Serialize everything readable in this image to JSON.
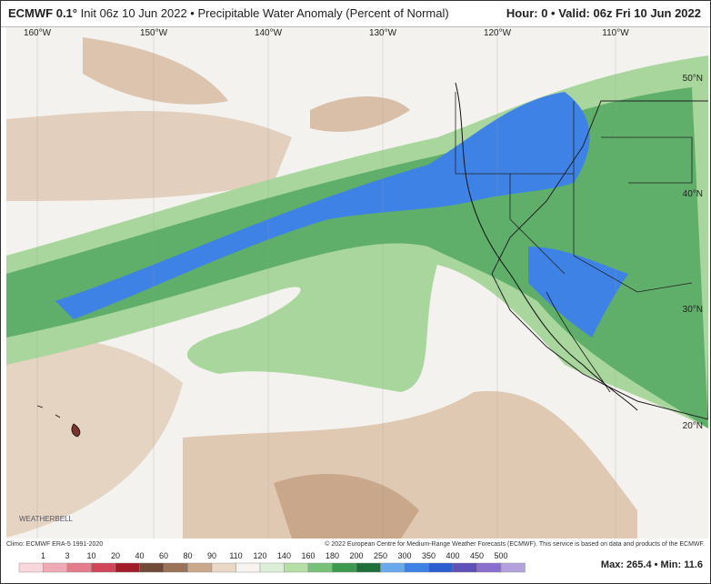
{
  "header": {
    "model": "ECMWF 0.1°",
    "title": "Init 06z 10 Jun 2022 • Precipitable Water Anomaly (Percent of Normal)",
    "valid": "Hour: 0 • Valid: 06z Fri 10 Jun 2022"
  },
  "map": {
    "lon_labels": [
      "160°W",
      "150°W",
      "140°W",
      "130°W",
      "120°W",
      "110°W"
    ],
    "lat_labels": [
      "50°N",
      "40°N",
      "30°N",
      "20°N"
    ],
    "logo": "WEATHERBELL"
  },
  "footer": {
    "climo": "Climo: ECMWF ERA-5 1991-2020",
    "copyright": "© 2022 European Centre for Medium-Range Weather Forecasts (ECMWF). This service is based on data and products of the ECMWF.",
    "stats": "Max: 265.4 • Min: 11.6"
  },
  "legend": {
    "labels": [
      1,
      3,
      10,
      20,
      40,
      60,
      80,
      90,
      110,
      120,
      140,
      160,
      180,
      200,
      250,
      300,
      350,
      400,
      450,
      500
    ],
    "colors": [
      "#f7d6dc",
      "#f0aab5",
      "#e47c8b",
      "#d2465a",
      "#a11d2a",
      "#6e4a37",
      "#9b7358",
      "#c9a88b",
      "#e8d8c5",
      "#f7f3ee",
      "#dcefd6",
      "#b4dea6",
      "#79c07b",
      "#3f9a51",
      "#1d6e37",
      "#6aa9ee",
      "#3f82e6",
      "#2d5ed0",
      "#5e50b8",
      "#8a6fcf",
      "#b3a2dd"
    ]
  }
}
